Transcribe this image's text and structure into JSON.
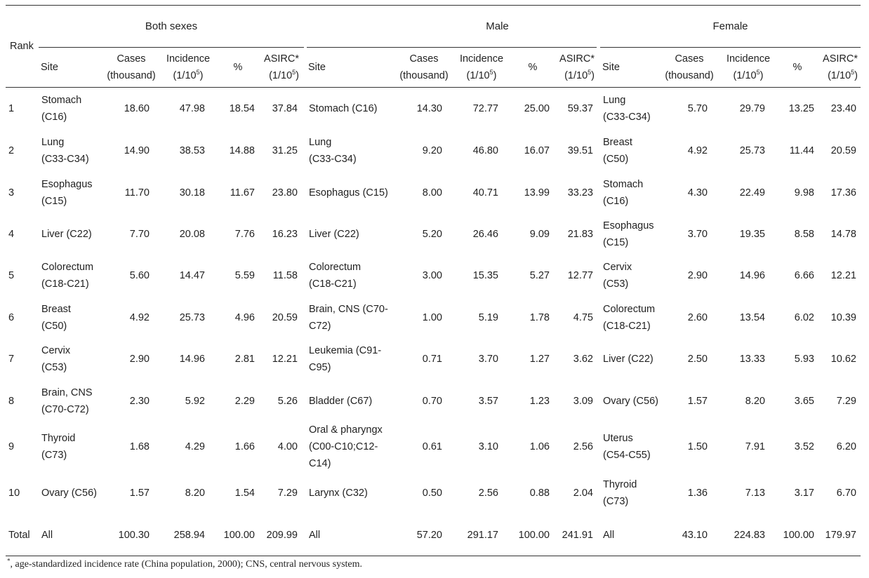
{
  "header": {
    "rank_label": "Rank",
    "groups": [
      "Both sexes",
      "Male",
      "Female"
    ],
    "site_label": "Site",
    "cases_label": [
      "Cases",
      "(thousand)"
    ],
    "incidence_label": [
      "Incidence",
      "(1/10",
      "5",
      ")"
    ],
    "pct_label": "%",
    "asirc_label": [
      "ASIRC*",
      "(1/10",
      "5",
      ")"
    ]
  },
  "rows": [
    {
      "rank": "1",
      "both": {
        "site": [
          "Stomach",
          "(C16)"
        ],
        "cases": "18.60",
        "inc": "47.98",
        "pct": "18.54",
        "asirc": "37.84"
      },
      "male": {
        "site": [
          "Stomach (C16)"
        ],
        "cases": "14.30",
        "inc": "72.77",
        "pct": "25.00",
        "asirc": "59.37"
      },
      "female": {
        "site": [
          "Lung",
          "(C33-C34)"
        ],
        "cases": "5.70",
        "inc": "29.79",
        "pct": "13.25",
        "asirc": "23.40"
      }
    },
    {
      "rank": "2",
      "both": {
        "site": [
          "Lung",
          "(C33-C34)"
        ],
        "cases": "14.90",
        "inc": "38.53",
        "pct": "14.88",
        "asirc": "31.25"
      },
      "male": {
        "site": [
          "Lung",
          "(C33-C34)"
        ],
        "cases": "9.20",
        "inc": "46.80",
        "pct": "16.07",
        "asirc": "39.51"
      },
      "female": {
        "site": [
          "Breast",
          "(C50)"
        ],
        "cases": "4.92",
        "inc": "25.73",
        "pct": "11.44",
        "asirc": "20.59"
      }
    },
    {
      "rank": "3",
      "both": {
        "site": [
          "Esophagus",
          "(C15)"
        ],
        "cases": "11.70",
        "inc": "30.18",
        "pct": "11.67",
        "asirc": "23.80"
      },
      "male": {
        "site": [
          "Esophagus (C15)"
        ],
        "cases": "8.00",
        "inc": "40.71",
        "pct": "13.99",
        "asirc": "33.23"
      },
      "female": {
        "site": [
          "Stomach",
          "(C16)"
        ],
        "cases": "4.30",
        "inc": "22.49",
        "pct": "9.98",
        "asirc": "17.36"
      }
    },
    {
      "rank": "4",
      "both": {
        "site": [
          "Liver (C22)"
        ],
        "cases": "7.70",
        "inc": "20.08",
        "pct": "7.76",
        "asirc": "16.23"
      },
      "male": {
        "site": [
          "Liver (C22)"
        ],
        "cases": "5.20",
        "inc": "26.46",
        "pct": "9.09",
        "asirc": "21.83"
      },
      "female": {
        "site": [
          "Esophagus",
          "(C15)"
        ],
        "cases": "3.70",
        "inc": "19.35",
        "pct": "8.58",
        "asirc": "14.78"
      }
    },
    {
      "rank": "5",
      "both": {
        "site": [
          "Colorectum",
          "(C18-C21)"
        ],
        "cases": "5.60",
        "inc": "14.47",
        "pct": "5.59",
        "asirc": "11.58"
      },
      "male": {
        "site": [
          "Colorectum",
          "(C18-C21)"
        ],
        "cases": "3.00",
        "inc": "15.35",
        "pct": "5.27",
        "asirc": "12.77"
      },
      "female": {
        "site": [
          "Cervix",
          "(C53)"
        ],
        "cases": "2.90",
        "inc": "14.96",
        "pct": "6.66",
        "asirc": "12.21"
      }
    },
    {
      "rank": "6",
      "both": {
        "site": [
          "Breast",
          "(C50)"
        ],
        "cases": "4.92",
        "inc": "25.73",
        "pct": "4.96",
        "asirc": "20.59"
      },
      "male": {
        "site": [
          "Brain, CNS (C70-",
          "C72)"
        ],
        "cases": "1.00",
        "inc": "5.19",
        "pct": "1.78",
        "asirc": "4.75"
      },
      "female": {
        "site": [
          "Colorectum",
          "(C18-C21)"
        ],
        "cases": "2.60",
        "inc": "13.54",
        "pct": "6.02",
        "asirc": "10.39"
      }
    },
    {
      "rank": "7",
      "both": {
        "site": [
          "Cervix",
          "(C53)"
        ],
        "cases": "2.90",
        "inc": "14.96",
        "pct": "2.81",
        "asirc": "12.21"
      },
      "male": {
        "site": [
          "Leukemia (C91-",
          "C95)"
        ],
        "cases": "0.71",
        "inc": "3.70",
        "pct": "1.27",
        "asirc": "3.62"
      },
      "female": {
        "site": [
          "Liver (C22)"
        ],
        "cases": "2.50",
        "inc": "13.33",
        "pct": "5.93",
        "asirc": "10.62"
      }
    },
    {
      "rank": "8",
      "both": {
        "site": [
          "Brain, CNS",
          "(C70-C72)"
        ],
        "cases": "2.30",
        "inc": "5.92",
        "pct": "2.29",
        "asirc": "5.26"
      },
      "male": {
        "site": [
          "Bladder (C67)"
        ],
        "cases": "0.70",
        "inc": "3.57",
        "pct": "1.23",
        "asirc": "3.09"
      },
      "female": {
        "site": [
          "Ovary (C56)"
        ],
        "cases": "1.57",
        "inc": "8.20",
        "pct": "3.65",
        "asirc": "7.29"
      }
    },
    {
      "rank": "9",
      "both": {
        "site": [
          "Thyroid",
          "(C73)"
        ],
        "cases": "1.68",
        "inc": "4.29",
        "pct": "1.66",
        "asirc": "4.00"
      },
      "male": {
        "site": [
          "Oral & pharyngx",
          "(C00-C10;C12-",
          "C14)"
        ],
        "cases": "0.61",
        "inc": "3.10",
        "pct": "1.06",
        "asirc": "2.56"
      },
      "female": {
        "site": [
          "Uterus",
          "(C54-C55)"
        ],
        "cases": "1.50",
        "inc": "7.91",
        "pct": "3.52",
        "asirc": "6.20"
      }
    },
    {
      "rank": "10",
      "both": {
        "site": [
          "Ovary (C56)"
        ],
        "cases": "1.57",
        "inc": "8.20",
        "pct": "1.54",
        "asirc": "7.29"
      },
      "male": {
        "site": [
          "Larynx (C32)"
        ],
        "cases": "0.50",
        "inc": "2.56",
        "pct": "0.88",
        "asirc": "2.04"
      },
      "female": {
        "site": [
          "Thyroid",
          "(C73)"
        ],
        "cases": "1.36",
        "inc": "7.13",
        "pct": "3.17",
        "asirc": "6.70"
      }
    },
    {
      "rank": "Total",
      "both": {
        "site": [
          "All"
        ],
        "cases": "100.30",
        "inc": "258.94",
        "pct": "100.00",
        "asirc": "209.99"
      },
      "male": {
        "site": [
          "All"
        ],
        "cases": "57.20",
        "inc": "291.17",
        "pct": "100.00",
        "asirc": "241.91"
      },
      "female": {
        "site": [
          "All"
        ],
        "cases": "43.10",
        "inc": "224.83",
        "pct": "100.00",
        "asirc": "179.97"
      }
    }
  ],
  "footnote": {
    "star": "*",
    "text": ", age-standardized incidence rate (China population, 2000); CNS, central nervous system."
  }
}
